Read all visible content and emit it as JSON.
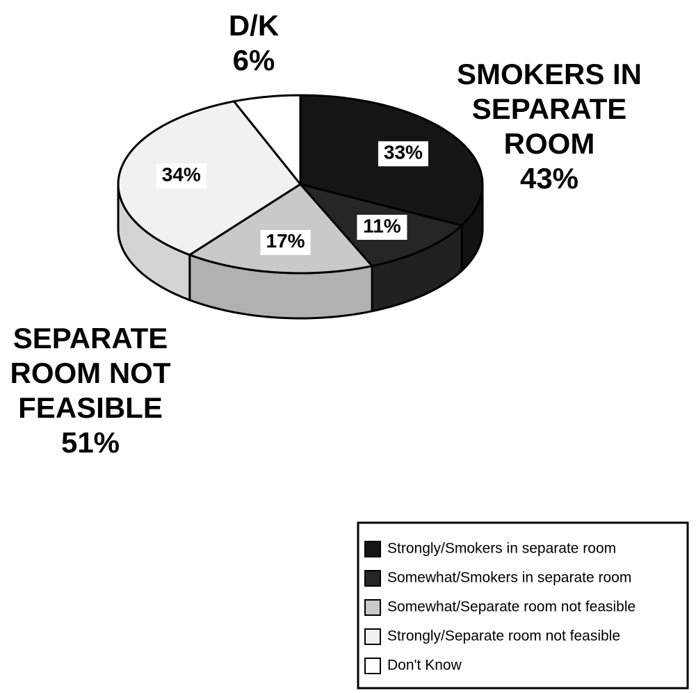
{
  "chart_data": {
    "type": "pie",
    "categories": [
      "Strongly/Smokers in separate room",
      "Somewhat/Smokers in separate room",
      "Somewhat/Separate room not feasible",
      "Strongly/Separate room not feasible",
      "Don't Know"
    ],
    "values": [
      33,
      11,
      17,
      34,
      6
    ],
    "value_labels": [
      "33%",
      "11%",
      "17%",
      "34%",
      null
    ],
    "colors": [
      "#151515",
      "#262626",
      "#c9c9c9",
      "#f1f1f1",
      "#ffffff"
    ],
    "groups": [
      {
        "label_lines": [
          "SMOKERS IN",
          "SEPARATE",
          "ROOM"
        ],
        "value": 43,
        "value_label": "43%"
      },
      {
        "label_lines": [
          "SEPARATE",
          "ROOM NOT",
          "FEASIBLE"
        ],
        "value": 51,
        "value_label": "51%"
      },
      {
        "label_lines": [
          "D/K"
        ],
        "value": 6,
        "value_label": "6%"
      }
    ],
    "legend": "bottom-right"
  }
}
